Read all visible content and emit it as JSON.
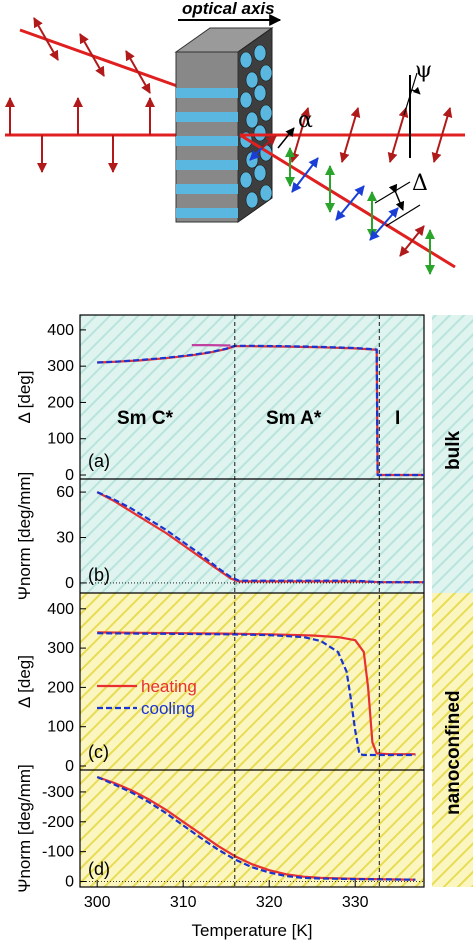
{
  "diagram": {
    "optical_axis_label": "optical axis",
    "alpha_symbol": "α",
    "psi_symbol": "ψ",
    "delta_symbol": "Δ"
  },
  "colors": {
    "beam": "#e02020",
    "polarization_red": "#b01a1a",
    "polarization_blue": "#1a3fd6",
    "polarization_green": "#2aa42a",
    "heating": "#e83030",
    "cooling": "#1a34d0",
    "bulk_bg": "#dff3ef",
    "bulk_hatch": "#b8e4dc",
    "nano_bg": "#fbf6c0",
    "nano_hatch": "#e8dc55"
  },
  "side_labels": {
    "bulk": "bulk",
    "nanoconfined": "nanoconfined"
  },
  "phase_labels": {
    "smc": "Sm C*",
    "sma": "Sm A*",
    "iso": "I"
  },
  "x_axis": {
    "label": "Temperature [K]",
    "ticks": [
      "300",
      "310",
      "320",
      "330"
    ],
    "range": [
      298,
      338
    ]
  },
  "legend": {
    "heating": "heating",
    "cooling": "cooling"
  },
  "chart_data": [
    {
      "type": "line",
      "panel": "(a)",
      "ylabel": "Δ [deg]",
      "ylim": [
        0,
        430
      ],
      "yticks": [
        "0",
        "100",
        "200",
        "300",
        "400"
      ],
      "series": [
        {
          "x": [
            300,
            302,
            305,
            308,
            311,
            313,
            315,
            316,
            318,
            322,
            326,
            330,
            332.5,
            332.6,
            333,
            336,
            338
          ],
          "y": [
            310,
            312,
            316,
            322,
            330,
            337,
            347,
            355,
            355,
            354,
            352,
            349,
            345,
            0,
            0,
            0,
            0
          ]
        },
        {
          "x": [
            300,
            302,
            305,
            308,
            311,
            313,
            315,
            316,
            318,
            322,
            326,
            330,
            332.5,
            332.6,
            333,
            336,
            338
          ],
          "y": [
            310,
            312,
            317,
            323,
            331,
            338,
            348,
            356,
            356,
            355,
            353,
            350,
            346,
            0,
            0,
            0,
            0
          ]
        },
        {
          "x": [
            311,
            313,
            315.5
          ],
          "y": [
            358,
            358,
            357
          ]
        }
      ]
    },
    {
      "type": "line",
      "panel": "(b)",
      "ylabel": "Ψnorm [deg/mm]",
      "ylim": [
        -4,
        66
      ],
      "yticks": [
        "0",
        "30",
        "60"
      ],
      "series": [
        {
          "x": [
            300,
            302,
            304,
            306,
            308,
            310,
            312,
            314,
            315.5,
            316.5,
            320,
            325,
            330,
            333,
            338
          ],
          "y": [
            60,
            54,
            47,
            40,
            33,
            25,
            17,
            9,
            3,
            1,
            1,
            1,
            1,
            0.5,
            0.5
          ]
        },
        {
          "x": [
            300,
            302,
            304,
            306,
            308,
            310,
            312,
            314,
            315.5,
            316.5,
            320,
            325,
            330,
            333,
            338
          ],
          "y": [
            60,
            55,
            49,
            42,
            35,
            27,
            19,
            10,
            4,
            1.5,
            1.5,
            1.5,
            1.5,
            0.5,
            0.5
          ]
        }
      ]
    },
    {
      "type": "line",
      "panel": "(c)",
      "ylabel": "Δ [deg]",
      "ylim": [
        0,
        430
      ],
      "yticks": [
        "0",
        "100",
        "200",
        "300",
        "400"
      ],
      "series": [
        {
          "name": "heating",
          "x": [
            300,
            305,
            310,
            315,
            320,
            325,
            328,
            330,
            331,
            331.5,
            332,
            332.5,
            334,
            336,
            337
          ],
          "y": [
            340,
            339,
            338,
            337,
            335,
            332,
            328,
            320,
            290,
            200,
            60,
            32,
            30,
            30,
            30
          ]
        },
        {
          "name": "cooling",
          "x": [
            300,
            305,
            310,
            315,
            320,
            324,
            326,
            328,
            329,
            329.5,
            330,
            330.5,
            331,
            332,
            334,
            336,
            337
          ],
          "y": [
            338,
            337,
            336,
            335,
            333,
            328,
            318,
            290,
            240,
            170,
            90,
            30,
            28,
            28,
            28,
            28,
            28
          ]
        }
      ]
    },
    {
      "type": "line",
      "panel": "(d)",
      "ylabel": "Ψnorm [deg/mm]",
      "ylim": [
        5,
        -360
      ],
      "yticks": [
        "0",
        "-100",
        "-200",
        "-300"
      ],
      "series": [
        {
          "name": "heating",
          "x": [
            300,
            302,
            304,
            306,
            308,
            310,
            312,
            314,
            316,
            318,
            320,
            322,
            324,
            326,
            330,
            334,
            337
          ],
          "y": [
            -350,
            -330,
            -305,
            -275,
            -240,
            -200,
            -160,
            -120,
            -85,
            -58,
            -38,
            -24,
            -16,
            -12,
            -9,
            -7,
            -6
          ]
        },
        {
          "name": "cooling",
          "x": [
            300,
            302,
            304,
            306,
            308,
            310,
            312,
            314,
            316,
            318,
            320,
            322,
            324,
            326,
            330,
            334,
            337
          ],
          "y": [
            -350,
            -325,
            -298,
            -266,
            -229,
            -188,
            -147,
            -108,
            -74,
            -48,
            -30,
            -18,
            -12,
            -10,
            -8,
            -7,
            -6
          ]
        }
      ]
    }
  ],
  "panel_labels": [
    "(a)",
    "(b)",
    "(c)",
    "(d)"
  ]
}
